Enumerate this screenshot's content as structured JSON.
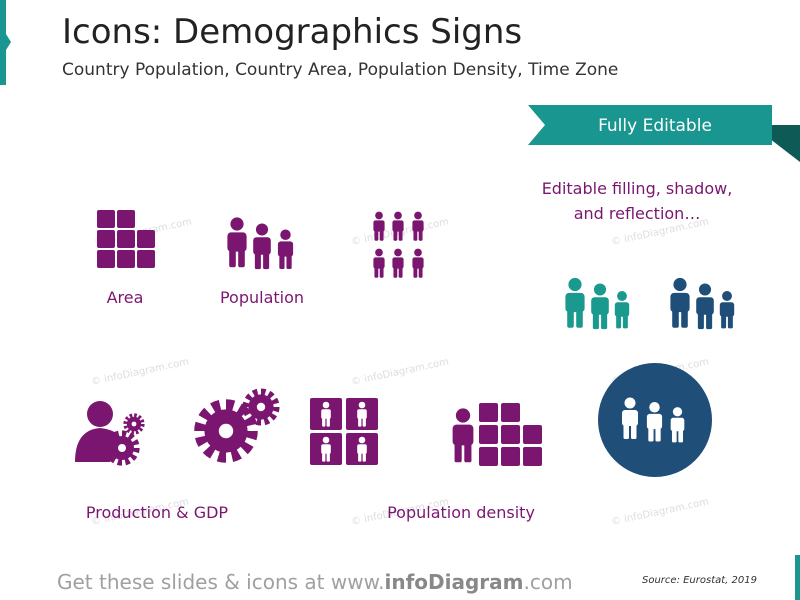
{
  "header": {
    "title": "Icons: Demographics Signs",
    "subtitle": "Country Population, Country Area, Population Density, Time Zone"
  },
  "badge": "Fully Editable",
  "note": [
    "Editable filling, shadow,",
    "and reflection…"
  ],
  "labels": {
    "area": "Area",
    "population": "Population",
    "production": "Production & GDP",
    "density": "Population density"
  },
  "watermark": "© infoDiagram.com",
  "footer": {
    "parts": [
      "Get these slides & icons at www.",
      "infoDiagram",
      ".com"
    ],
    "source": "Source: Eurostat, 2019"
  }
}
